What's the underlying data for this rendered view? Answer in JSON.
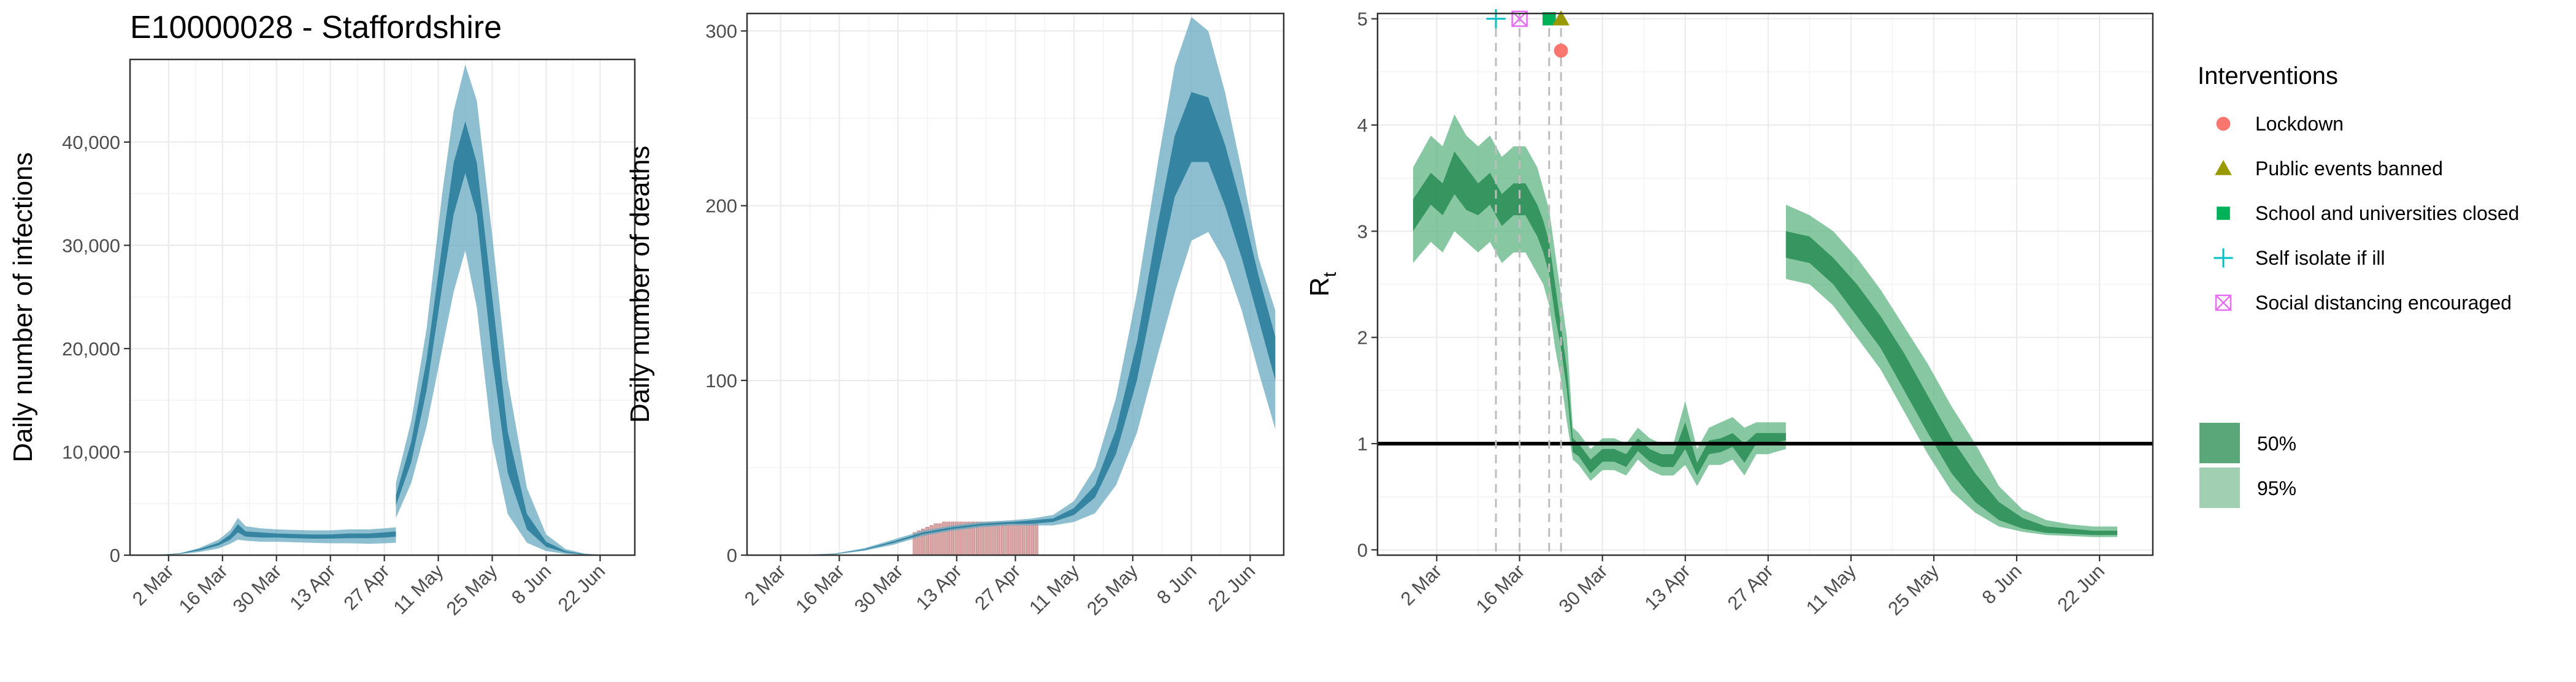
{
  "title": "E10000028 - Staffordshire",
  "colors": {
    "infection_band": "#3d8eaa",
    "death_band": "#3d8eaa",
    "observed_deaths": "#d9a5a5",
    "rt_band": "#2e9a5f",
    "threshold_line": "#000000",
    "grid": "#ebebeb",
    "intervention_line": "#bdbdbd"
  },
  "chart_data": [
    {
      "id": "infections",
      "type": "area",
      "xlabel": "",
      "ylabel": "Daily number of infections",
      "xlim": [
        "2020-02-21",
        "2020-07-01"
      ],
      "ylim": [
        0,
        48000
      ],
      "y_ticks": [
        0,
        10000,
        20000,
        30000,
        40000
      ],
      "y_tick_labels": [
        "0",
        "10,000",
        "20,000",
        "30,000",
        "40,000"
      ],
      "x_ticks": [
        "2020-03-02",
        "2020-03-16",
        "2020-03-30",
        "2020-04-13",
        "2020-04-27",
        "2020-05-11",
        "2020-05-25",
        "2020-06-08",
        "2020-06-22"
      ],
      "x_tick_labels": [
        "2 Mar",
        "16 Mar",
        "30 Mar",
        "13 Apr",
        "27 Apr",
        "11 May",
        "25 May",
        "8 Jun",
        "22 Jun"
      ],
      "series": [
        {
          "band": "95%",
          "x": [
            "2020-02-27",
            "2020-03-05",
            "2020-03-10",
            "2020-03-15",
            "2020-03-18",
            "2020-03-20",
            "2020-03-22",
            "2020-03-26",
            "2020-03-30",
            "2020-04-03",
            "2020-04-08",
            "2020-04-13",
            "2020-04-18",
            "2020-04-23",
            "2020-04-27",
            "2020-04-30",
            "2020-04-30",
            "2020-05-04",
            "2020-05-08",
            "2020-05-12",
            "2020-05-15",
            "2020-05-18",
            "2020-05-21",
            "2020-05-25",
            "2020-05-29",
            "2020-06-03",
            "2020-06-08",
            "2020-06-13",
            "2020-06-18",
            "2020-06-24"
          ],
          "lower": [
            0,
            100,
            300,
            650,
            1100,
            1500,
            1400,
            1300,
            1300,
            1250,
            1200,
            1150,
            1150,
            1100,
            1150,
            1200,
            3600,
            7000,
            12500,
            20000,
            25500,
            29500,
            24000,
            11000,
            4000,
            1200,
            400,
            120,
            30,
            0
          ],
          "upper": [
            0,
            200,
            700,
            1500,
            2400,
            3600,
            2800,
            2600,
            2500,
            2450,
            2400,
            2400,
            2500,
            2500,
            2600,
            2700,
            7000,
            13000,
            22000,
            35000,
            43000,
            47500,
            44000,
            31000,
            17000,
            6500,
            2000,
            600,
            150,
            0
          ]
        },
        {
          "band": "50%",
          "x": [
            "2020-02-27",
            "2020-03-05",
            "2020-03-10",
            "2020-03-15",
            "2020-03-18",
            "2020-03-20",
            "2020-03-22",
            "2020-03-26",
            "2020-03-30",
            "2020-04-03",
            "2020-04-08",
            "2020-04-13",
            "2020-04-18",
            "2020-04-23",
            "2020-04-27",
            "2020-04-30",
            "2020-04-30",
            "2020-05-04",
            "2020-05-08",
            "2020-05-12",
            "2020-05-15",
            "2020-05-18",
            "2020-05-21",
            "2020-05-25",
            "2020-05-29",
            "2020-06-03",
            "2020-06-08",
            "2020-06-13",
            "2020-06-18",
            "2020-06-24"
          ],
          "lower": [
            0,
            130,
            450,
            950,
            1500,
            2200,
            1800,
            1700,
            1700,
            1650,
            1600,
            1600,
            1650,
            1650,
            1700,
            1800,
            4800,
            9000,
            16000,
            26000,
            33000,
            37000,
            33000,
            19000,
            8000,
            2500,
            800,
            250,
            60,
            0
          ],
          "upper": [
            0,
            170,
            600,
            1200,
            2000,
            3000,
            2300,
            2200,
            2100,
            2050,
            2000,
            2000,
            2100,
            2100,
            2200,
            2300,
            5800,
            11000,
            19000,
            30000,
            38000,
            42000,
            38000,
            25000,
            12000,
            4000,
            1300,
            400,
            100,
            0
          ]
        }
      ]
    },
    {
      "id": "deaths",
      "type": "area",
      "xlabel": "",
      "ylabel": "Daily number of deaths",
      "xlim": [
        "2020-02-23",
        "2020-06-30"
      ],
      "ylim": [
        0,
        310
      ],
      "y_ticks": [
        0,
        100,
        200,
        300
      ],
      "y_tick_labels": [
        "0",
        "100",
        "200",
        "300"
      ],
      "x_ticks": [
        "2020-03-02",
        "2020-03-16",
        "2020-03-30",
        "2020-04-13",
        "2020-04-27",
        "2020-05-11",
        "2020-05-25",
        "2020-06-08",
        "2020-06-22"
      ],
      "x_tick_labels": [
        "2 Mar",
        "16 Mar",
        "30 Mar",
        "13 Apr",
        "27 Apr",
        "11 May",
        "25 May",
        "8 Jun",
        "22 Jun"
      ],
      "observed": {
        "x": [
          "2020-04-03",
          "2020-04-04",
          "2020-04-05",
          "2020-04-06",
          "2020-04-07",
          "2020-04-08",
          "2020-04-09",
          "2020-04-10",
          "2020-04-11",
          "2020-04-12",
          "2020-04-13",
          "2020-04-14",
          "2020-04-15",
          "2020-04-16",
          "2020-04-17",
          "2020-04-18",
          "2020-04-19",
          "2020-04-20",
          "2020-04-21",
          "2020-04-22",
          "2020-04-23",
          "2020-04-24",
          "2020-04-25",
          "2020-04-26",
          "2020-04-27",
          "2020-04-28",
          "2020-04-29",
          "2020-04-30",
          "2020-05-01",
          "2020-05-02"
        ],
        "values": [
          13,
          14,
          15,
          16,
          17,
          18,
          18,
          19,
          19,
          19,
          19,
          19,
          19,
          19,
          19,
          19,
          19,
          19,
          19,
          19,
          19,
          19,
          19,
          19,
          19,
          19,
          19,
          19,
          19,
          19
        ]
      },
      "series": [
        {
          "band": "95%",
          "x": [
            "2020-03-06",
            "2020-03-15",
            "2020-03-22",
            "2020-03-29",
            "2020-04-05",
            "2020-04-12",
            "2020-04-19",
            "2020-04-26",
            "2020-05-01",
            "2020-05-06",
            "2020-05-11",
            "2020-05-16",
            "2020-05-21",
            "2020-05-26",
            "2020-05-31",
            "2020-06-04",
            "2020-06-08",
            "2020-06-12",
            "2020-06-16",
            "2020-06-20",
            "2020-06-24",
            "2020-06-28"
          ],
          "lower": [
            0,
            0.5,
            2.5,
            6,
            11,
            14,
            16,
            17,
            17,
            17,
            19,
            24,
            40,
            70,
            115,
            150,
            180,
            185,
            168,
            140,
            105,
            72
          ],
          "upper": [
            0,
            1,
            4,
            9,
            14,
            17,
            19,
            20,
            21,
            23,
            31,
            50,
            90,
            150,
            225,
            280,
            308,
            300,
            265,
            220,
            170,
            140
          ]
        },
        {
          "band": "50%",
          "x": [
            "2020-03-06",
            "2020-03-15",
            "2020-03-22",
            "2020-03-29",
            "2020-04-05",
            "2020-04-12",
            "2020-04-19",
            "2020-04-26",
            "2020-05-01",
            "2020-05-06",
            "2020-05-11",
            "2020-05-16",
            "2020-05-21",
            "2020-05-26",
            "2020-05-31",
            "2020-06-04",
            "2020-06-08",
            "2020-06-12",
            "2020-06-16",
            "2020-06-20",
            "2020-06-24",
            "2020-06-28"
          ],
          "lower": [
            0,
            0.6,
            3,
            7,
            12,
            15,
            17,
            18,
            18,
            19,
            23,
            33,
            58,
            100,
            160,
            205,
            225,
            225,
            200,
            170,
            135,
            100
          ],
          "upper": [
            0,
            0.8,
            3.5,
            8,
            13,
            16,
            18,
            19,
            20,
            21,
            27,
            40,
            72,
            122,
            190,
            240,
            265,
            262,
            235,
            200,
            160,
            125
          ]
        }
      ]
    },
    {
      "id": "rt",
      "type": "area",
      "xlabel": "",
      "ylabel": "R",
      "ylabel_sub": "t",
      "xlim": [
        "2020-02-21",
        "2020-07-01"
      ],
      "ylim": [
        -0.05,
        5.05
      ],
      "y_ticks": [
        0,
        1,
        2,
        3,
        4,
        5
      ],
      "y_tick_labels": [
        "0",
        "1",
        "2",
        "3",
        "4",
        "5"
      ],
      "x_ticks": [
        "2020-03-02",
        "2020-03-16",
        "2020-03-30",
        "2020-04-13",
        "2020-04-27",
        "2020-05-11",
        "2020-05-25",
        "2020-06-08",
        "2020-06-22"
      ],
      "x_tick_labels": [
        "2 Mar",
        "16 Mar",
        "30 Mar",
        "13 Apr",
        "27 Apr",
        "11 May",
        "25 May",
        "8 Jun",
        "22 Jun"
      ],
      "threshold": 1,
      "series": [
        {
          "band": "95%",
          "x": [
            "2020-02-27",
            "2020-03-01",
            "2020-03-03",
            "2020-03-05",
            "2020-03-07",
            "2020-03-09",
            "2020-03-11",
            "2020-03-13",
            "2020-03-15",
            "2020-03-17",
            "2020-03-19",
            "2020-03-20",
            "2020-03-21",
            "2020-03-22",
            "2020-03-23",
            "2020-03-24",
            "2020-03-25",
            "2020-03-26",
            "2020-03-28",
            "2020-03-30",
            "2020-04-01",
            "2020-04-03",
            "2020-04-05",
            "2020-04-07",
            "2020-04-09",
            "2020-04-11",
            "2020-04-13",
            "2020-04-15",
            "2020-04-17",
            "2020-04-19",
            "2020-04-21",
            "2020-04-23",
            "2020-04-25",
            "2020-04-27",
            "2020-04-30",
            "2020-04-30",
            "2020-05-04",
            "2020-05-08",
            "2020-05-12",
            "2020-05-16",
            "2020-05-20",
            "2020-05-24",
            "2020-05-28",
            "2020-06-01",
            "2020-06-05",
            "2020-06-09",
            "2020-06-13",
            "2020-06-17",
            "2020-06-21",
            "2020-06-25"
          ],
          "lower": [
            2.7,
            2.9,
            2.8,
            3.0,
            2.9,
            2.8,
            2.9,
            2.7,
            2.8,
            2.8,
            2.6,
            2.5,
            2.3,
            1.9,
            1.6,
            1.2,
            0.85,
            0.8,
            0.65,
            0.75,
            0.75,
            0.7,
            0.85,
            0.75,
            0.7,
            0.7,
            0.8,
            0.6,
            0.8,
            0.8,
            0.85,
            0.7,
            0.9,
            0.9,
            0.95,
            2.55,
            2.5,
            2.3,
            2.0,
            1.7,
            1.3,
            0.9,
            0.55,
            0.35,
            0.22,
            0.17,
            0.14,
            0.13,
            0.12,
            0.12
          ],
          "upper": [
            3.6,
            3.9,
            3.8,
            4.1,
            3.9,
            3.8,
            3.9,
            3.7,
            3.8,
            3.8,
            3.6,
            3.4,
            3.2,
            2.8,
            2.4,
            2.0,
            1.15,
            1.1,
            0.95,
            1.05,
            1.05,
            1.0,
            1.15,
            1.05,
            1.0,
            1.0,
            1.4,
            0.95,
            1.15,
            1.2,
            1.25,
            1.15,
            1.2,
            1.2,
            1.2,
            3.25,
            3.15,
            3.0,
            2.75,
            2.45,
            2.1,
            1.75,
            1.35,
            1.0,
            0.6,
            0.38,
            0.28,
            0.24,
            0.22,
            0.22
          ]
        },
        {
          "band": "50%",
          "x": [
            "2020-02-27",
            "2020-03-01",
            "2020-03-03",
            "2020-03-05",
            "2020-03-07",
            "2020-03-09",
            "2020-03-11",
            "2020-03-13",
            "2020-03-15",
            "2020-03-17",
            "2020-03-19",
            "2020-03-20",
            "2020-03-21",
            "2020-03-22",
            "2020-03-23",
            "2020-03-24",
            "2020-03-25",
            "2020-03-26",
            "2020-03-28",
            "2020-03-30",
            "2020-04-01",
            "2020-04-03",
            "2020-04-05",
            "2020-04-07",
            "2020-04-09",
            "2020-04-11",
            "2020-04-13",
            "2020-04-15",
            "2020-04-17",
            "2020-04-19",
            "2020-04-21",
            "2020-04-23",
            "2020-04-25",
            "2020-04-27",
            "2020-04-30",
            "2020-04-30",
            "2020-05-04",
            "2020-05-08",
            "2020-05-12",
            "2020-05-16",
            "2020-05-20",
            "2020-05-24",
            "2020-05-28",
            "2020-06-01",
            "2020-06-05",
            "2020-06-09",
            "2020-06-13",
            "2020-06-17",
            "2020-06-21",
            "2020-06-25"
          ],
          "lower": [
            3.0,
            3.25,
            3.15,
            3.35,
            3.2,
            3.15,
            3.25,
            3.05,
            3.15,
            3.15,
            2.95,
            2.8,
            2.6,
            2.2,
            1.9,
            1.5,
            0.92,
            0.88,
            0.72,
            0.83,
            0.83,
            0.78,
            0.93,
            0.83,
            0.78,
            0.78,
            0.95,
            0.7,
            0.9,
            0.92,
            0.97,
            0.82,
            1.0,
            1.0,
            1.03,
            2.75,
            2.7,
            2.5,
            2.2,
            1.9,
            1.5,
            1.1,
            0.72,
            0.45,
            0.28,
            0.2,
            0.16,
            0.15,
            0.14,
            0.14
          ],
          "upper": [
            3.3,
            3.55,
            3.45,
            3.75,
            3.6,
            3.45,
            3.55,
            3.35,
            3.45,
            3.45,
            3.25,
            3.1,
            2.9,
            2.5,
            2.1,
            1.7,
            1.05,
            1.0,
            0.85,
            0.95,
            0.95,
            0.9,
            1.05,
            0.95,
            0.9,
            0.9,
            1.2,
            0.82,
            1.03,
            1.05,
            1.1,
            1.0,
            1.1,
            1.1,
            1.1,
            3.0,
            2.95,
            2.75,
            2.5,
            2.2,
            1.85,
            1.45,
            1.05,
            0.72,
            0.45,
            0.3,
            0.22,
            0.2,
            0.18,
            0.18
          ]
        }
      ],
      "interventions": [
        {
          "name": "Self isolate if ill",
          "date": "2020-03-12",
          "shape": "plus",
          "color": "#00bfc4",
          "y": 5.0
        },
        {
          "name": "Social distancing encouraged",
          "date": "2020-03-16",
          "shape": "boxx",
          "color": "#e76bf3",
          "y": 5.0
        },
        {
          "name": "School and universities closed",
          "date": "2020-03-21",
          "shape": "square",
          "color": "#00b159",
          "y": 5.0
        },
        {
          "name": "Public events banned",
          "date": "2020-03-23",
          "shape": "triangle",
          "color": "#9a9a00",
          "y": 5.0
        },
        {
          "name": "Lockdown",
          "date": "2020-03-23",
          "shape": "circle",
          "color": "#f8766d",
          "y": 4.7
        }
      ]
    }
  ],
  "legend": {
    "title": "Interventions",
    "items": [
      {
        "label": "Lockdown",
        "shape": "circle",
        "color": "#f8766d"
      },
      {
        "label": "Public events banned",
        "shape": "triangle",
        "color": "#9a9a00"
      },
      {
        "label": "School and universities closed",
        "shape": "square",
        "color": "#00b159"
      },
      {
        "label": "Self isolate if ill",
        "shape": "plus",
        "color": "#00bfc4"
      },
      {
        "label": "Social distancing encouraged",
        "shape": "boxx",
        "color": "#e76bf3"
      }
    ],
    "bands": [
      {
        "label": "50%",
        "color": "#5aa87a"
      },
      {
        "label": "95%",
        "color": "#a0cfb2"
      }
    ]
  }
}
